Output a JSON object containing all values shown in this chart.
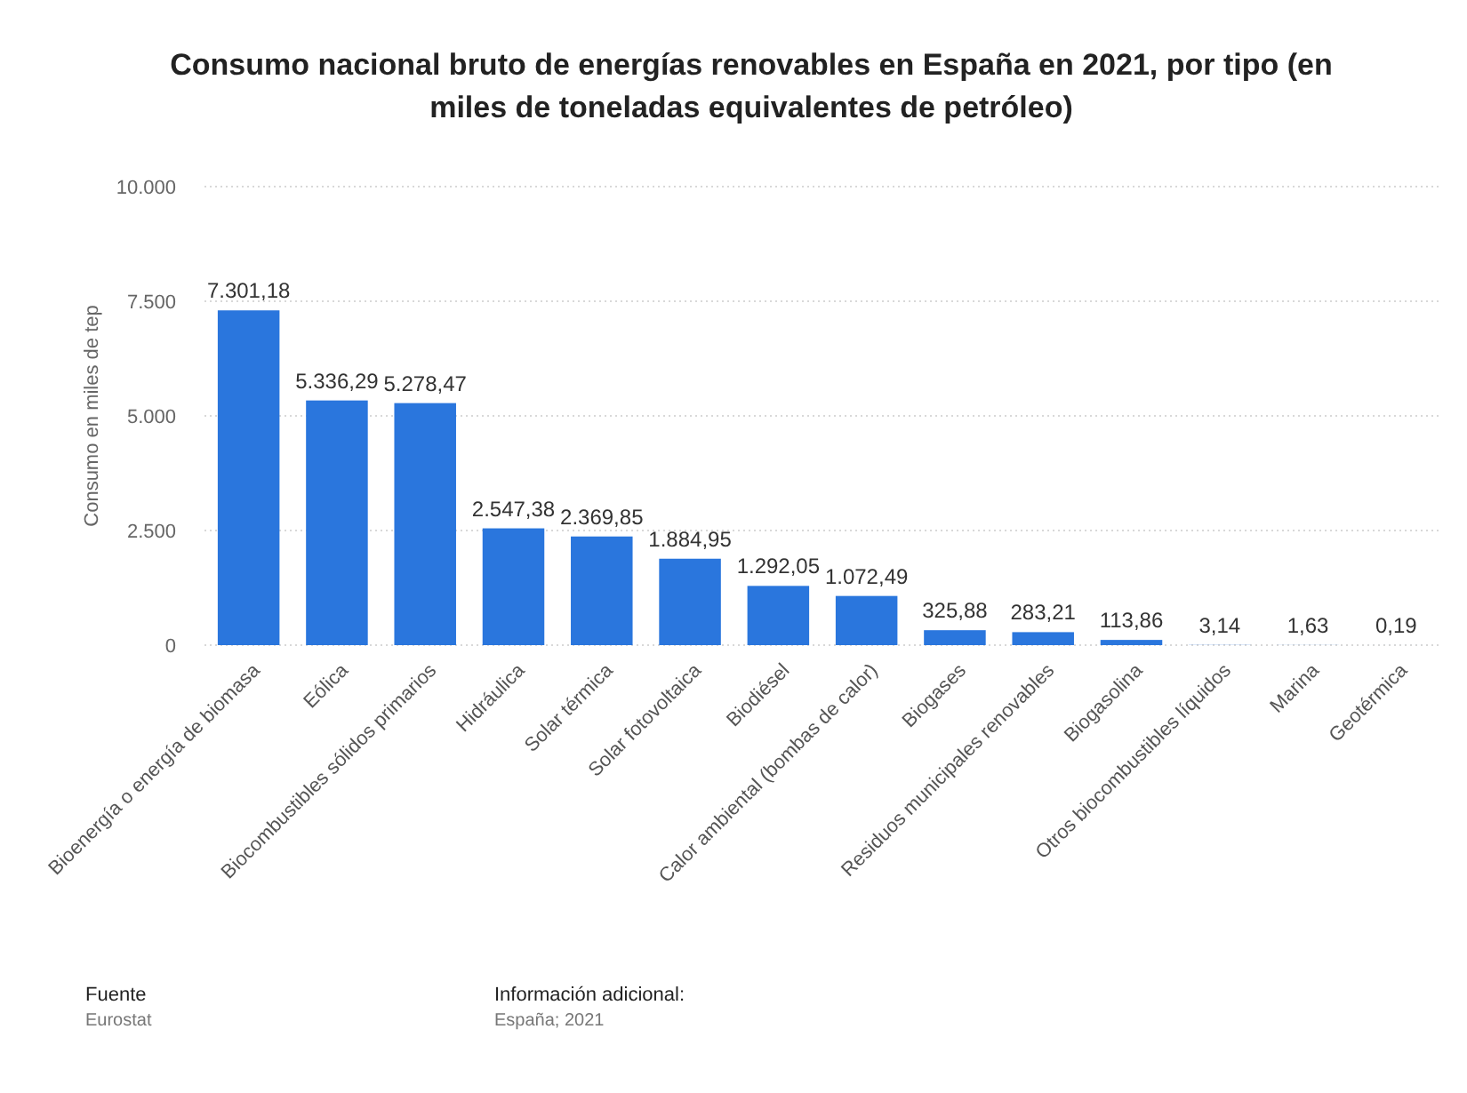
{
  "chart_data": {
    "type": "bar",
    "title": "Consumo nacional bruto de energías renovables en España en 2021, por tipo (en miles de toneladas equivalentes de petróleo)",
    "ylabel": "Consumo en miles de tep",
    "categories": [
      "Bioenergía o energía de biomasa",
      "Eólica",
      "Biocombustibles sólidos primarios",
      "Hidráulica",
      "Solar térmica",
      "Solar fotovoltaica",
      "Biodiésel",
      "Calor ambiental (bombas de calor)",
      "Biogases",
      "Residuos municipales renovables",
      "Biogasolina",
      "Otros biocombustibles líquidos",
      "Marina",
      "Geotérmica"
    ],
    "values": [
      7301.18,
      5336.29,
      5278.47,
      2547.38,
      2369.85,
      1884.95,
      1292.05,
      1072.49,
      325.88,
      283.21,
      113.86,
      3.14,
      1.63,
      0.19
    ],
    "value_labels": [
      "7.301,18",
      "5.336,29",
      "5.278,47",
      "2.547,38",
      "2.369,85",
      "1.884,95",
      "1.292,05",
      "1.072,49",
      "325,88",
      "283,21",
      "113,86",
      "3,14",
      "1,63",
      "0,19"
    ],
    "color": "#2a76dd",
    "ylim": [
      0,
      10000
    ],
    "yticks": [
      0,
      {
        "value": 2500,
        "label": "2.500"
      },
      {
        "value": 5000,
        "label": "5.000"
      },
      {
        "value": 7500,
        "label": "7.500"
      },
      {
        "value": 10000,
        "label": "10.000"
      }
    ],
    "grid": "y",
    "annotations": [
      "Fuente",
      "Eurostat",
      "Información adicional:",
      "España; 2021"
    ]
  }
}
